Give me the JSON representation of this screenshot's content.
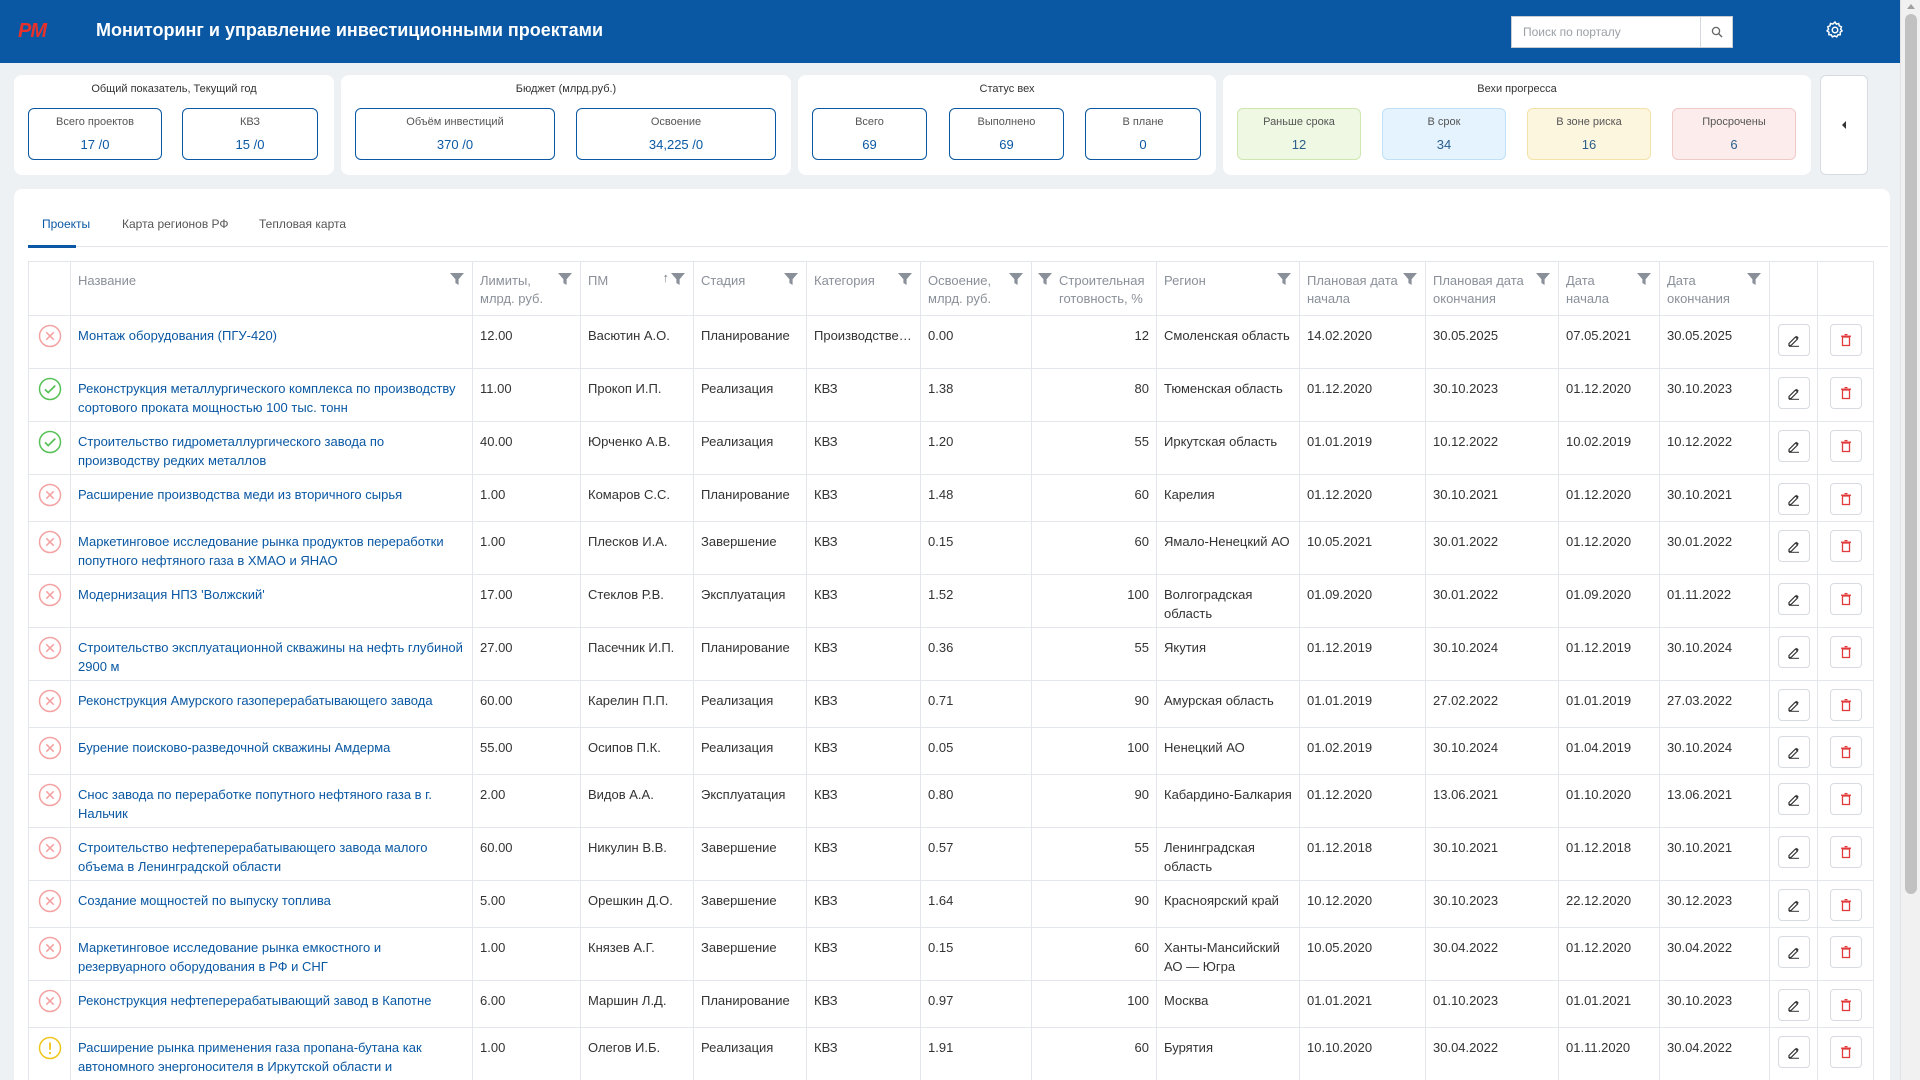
{
  "header": {
    "logo_text": "PM",
    "title": "Мониторинг и управление инвестиционными проектами",
    "search_placeholder": "Поиск по порталу",
    "search_icon": "search-icon",
    "settings_icon": "gear-icon"
  },
  "colors": {
    "brand": "#0a58a3",
    "logo": "#e8312a",
    "ok": "#55c155",
    "late": "#f3a1a1",
    "risk": "#f0c419",
    "delete": "#e23b3b"
  },
  "summary": {
    "overall": {
      "title": "Общий показатель, Текущий год",
      "items": [
        {
          "label": "Всего проектов",
          "value": "17 /0"
        },
        {
          "label": "КВЗ",
          "value": "15 /0"
        }
      ]
    },
    "budget": {
      "title": "Бюджет (млрд.руб.)",
      "items": [
        {
          "label": "Объём инвестиций",
          "value": "370 /0"
        },
        {
          "label": "Освоение",
          "value": "34,225 /0"
        }
      ]
    },
    "milestones": {
      "title": "Статус вех",
      "items": [
        {
          "label": "Всего",
          "value": "69"
        },
        {
          "label": "Выполнено",
          "value": "69"
        },
        {
          "label": "В плане",
          "value": "0"
        }
      ]
    },
    "progress": {
      "title": "Вехи прогресса",
      "items": [
        {
          "label": "Раньше срока",
          "value": "12"
        },
        {
          "label": "В срок",
          "value": "34"
        },
        {
          "label": "В зоне риска",
          "value": "16"
        },
        {
          "label": "Просрочены",
          "value": "6"
        }
      ]
    }
  },
  "tabs": [
    {
      "label": "Проекты",
      "active": true
    },
    {
      "label": "Карта регионов РФ",
      "active": false
    },
    {
      "label": "Тепловая карта",
      "active": false
    }
  ],
  "table": {
    "columns": [
      "Название",
      "Лимиты, млрд. руб.",
      "ПМ",
      "Стадия",
      "Категория",
      "Освоение, млрд. руб.",
      "Строительная готовность, %",
      "Регион",
      "Плановая дата начала",
      "Плановая дата окончания",
      "Дата начала",
      "Дата окончания"
    ],
    "sort_indicator": "↑",
    "rows": [
      {
        "status": "late",
        "name": "Монтаж оборудования (ПГУ-420)",
        "limit": "12.00",
        "pm": "Васютин А.О.",
        "stage": "Планирование",
        "category": "Производственный",
        "spent": "0.00",
        "readiness": "12",
        "region": "Смоленская область",
        "plan_start": "14.02.2020",
        "plan_end": "30.05.2025",
        "start": "07.05.2021",
        "end": "30.05.2025"
      },
      {
        "status": "ok",
        "name": "Реконструкция металлургического комплекса по производству сортового проката мощностью 100 тыс. тонн",
        "limit": "11.00",
        "pm": "Прокоп И.П.",
        "stage": "Реализация",
        "category": "КВЗ",
        "spent": "1.38",
        "readiness": "80",
        "region": "Тюменская область",
        "plan_start": "01.12.2020",
        "plan_end": "30.10.2023",
        "start": "01.12.2020",
        "end": "30.10.2023"
      },
      {
        "status": "ok",
        "name": "Строительство гидрометаллургического завода по производству редких металлов",
        "limit": "40.00",
        "pm": "Юрченко А.В.",
        "stage": "Реализация",
        "category": "КВЗ",
        "spent": "1.20",
        "readiness": "55",
        "region": "Иркутская область",
        "plan_start": "01.01.2019",
        "plan_end": "10.12.2022",
        "start": "10.02.2019",
        "end": "10.12.2022"
      },
      {
        "status": "late",
        "name": "Расширение производства меди из вторичного сырья",
        "limit": "1.00",
        "pm": "Комаров С.С.",
        "stage": "Планирование",
        "category": "КВЗ",
        "spent": "1.48",
        "readiness": "60",
        "region": "Карелия",
        "plan_start": "01.12.2020",
        "plan_end": "30.10.2021",
        "start": "01.12.2020",
        "end": "30.10.2021"
      },
      {
        "status": "late",
        "name": "Маркетинговое исследование рынка продуктов переработки попутного нефтяного газа в ХМАО и ЯНАО",
        "limit": "1.00",
        "pm": "Плесков И.А.",
        "stage": "Завершение",
        "category": "КВЗ",
        "spent": "0.15",
        "readiness": "60",
        "region": "Ямало-Ненецкий АО",
        "plan_start": "10.05.2021",
        "plan_end": "30.01.2022",
        "start": "01.12.2020",
        "end": "30.01.2022"
      },
      {
        "status": "late",
        "name": "Модернизация НПЗ 'Волжский'",
        "limit": "17.00",
        "pm": "Стеклов Р.В.",
        "stage": "Эксплуатация",
        "category": "КВЗ",
        "spent": "1.52",
        "readiness": "100",
        "region": "Волгоградская область",
        "plan_start": "01.09.2020",
        "plan_end": "30.01.2022",
        "start": "01.09.2020",
        "end": "01.11.2022"
      },
      {
        "status": "late",
        "name": "Строительство эксплуатационной скважины на нефть глубиной 2900 м",
        "limit": "27.00",
        "pm": "Пасечник И.П.",
        "stage": "Планирование",
        "category": "КВЗ",
        "spent": "0.36",
        "readiness": "55",
        "region": "Якутия",
        "plan_start": "01.12.2019",
        "plan_end": "30.10.2024",
        "start": "01.12.2019",
        "end": "30.10.2024"
      },
      {
        "status": "late",
        "name": "Реконструкция Амурского газоперерабатывающего завода",
        "limit": "60.00",
        "pm": "Карелин П.П.",
        "stage": "Реализация",
        "category": "КВЗ",
        "spent": "0.71",
        "readiness": "90",
        "region": "Амурская область",
        "plan_start": "01.01.2019",
        "plan_end": "27.02.2022",
        "start": "01.01.2019",
        "end": "27.03.2022"
      },
      {
        "status": "late",
        "name": "Бурение поисково-разведочной скважины Амдерма",
        "limit": "55.00",
        "pm": "Осипов П.К.",
        "stage": "Реализация",
        "category": "КВЗ",
        "spent": "0.05",
        "readiness": "100",
        "region": "Ненецкий АО",
        "plan_start": "01.02.2019",
        "plan_end": "30.10.2024",
        "start": "01.04.2019",
        "end": "30.10.2024"
      },
      {
        "status": "late",
        "name": "Снос завода по переработке попутного нефтяного газа в г. Нальчик",
        "limit": "2.00",
        "pm": "Видов А.А.",
        "stage": "Эксплуатация",
        "category": "КВЗ",
        "spent": "0.80",
        "readiness": "90",
        "region": "Кабардино-Балкария",
        "plan_start": "01.12.2020",
        "plan_end": "13.06.2021",
        "start": "01.10.2020",
        "end": "13.06.2021"
      },
      {
        "status": "late",
        "name": "Строительство нефтеперерабатывающего завода малого объема в Ленинградской области",
        "limit": "60.00",
        "pm": "Никулин В.В.",
        "stage": "Завершение",
        "category": "КВЗ",
        "spent": "0.57",
        "readiness": "55",
        "region": "Ленинградская область",
        "plan_start": "01.12.2018",
        "plan_end": "30.10.2021",
        "start": "01.12.2018",
        "end": "30.10.2021"
      },
      {
        "status": "late",
        "name": "Создание мощностей по выпуску топлива",
        "limit": "5.00",
        "pm": "Орешкин Д.О.",
        "stage": "Завершение",
        "category": "КВЗ",
        "spent": "1.64",
        "readiness": "90",
        "region": "Красноярский край",
        "plan_start": "10.12.2020",
        "plan_end": "30.10.2023",
        "start": "22.12.2020",
        "end": "30.12.2023"
      },
      {
        "status": "late",
        "name": "Маркетинговое исследование рынка емкостного и резервуарного оборудования в РФ и СНГ",
        "limit": "1.00",
        "pm": "Князев А.Г.",
        "stage": "Завершение",
        "category": "КВЗ",
        "spent": "0.15",
        "readiness": "60",
        "region": "Ханты-Мансийский АО — Югра",
        "plan_start": "10.05.2020",
        "plan_end": "30.04.2022",
        "start": "01.12.2020",
        "end": "30.04.2022"
      },
      {
        "status": "late",
        "name": "Реконструкция нефтеперерабатывающий завод в Капотне",
        "limit": "6.00",
        "pm": "Маршин Л.Д.",
        "stage": "Планирование",
        "category": "КВЗ",
        "spent": "0.97",
        "readiness": "100",
        "region": "Москва",
        "plan_start": "01.01.2021",
        "plan_end": "01.10.2023",
        "start": "01.01.2021",
        "end": "30.10.2023"
      },
      {
        "status": "risk",
        "name": "Расширение рынка применения газа пропана-бутана как автономного энергоносителя в Иркутской области и",
        "limit": "1.00",
        "pm": "Олегов И.Б.",
        "stage": "Реализация",
        "category": "КВЗ",
        "spent": "1.91",
        "readiness": "60",
        "region": "Бурятия",
        "plan_start": "10.10.2020",
        "plan_end": "30.04.2022",
        "start": "01.11.2020",
        "end": "30.04.2022"
      }
    ]
  }
}
